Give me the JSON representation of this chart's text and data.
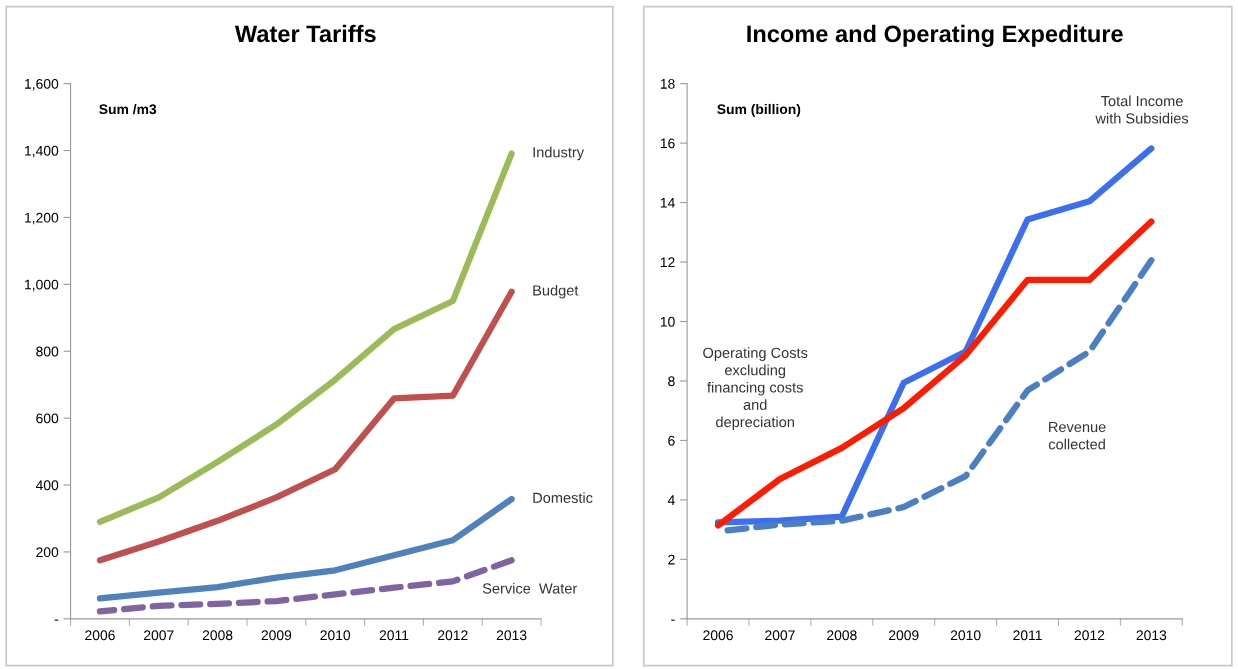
{
  "chart_data": [
    {
      "type": "line",
      "title": "Water Tariffs",
      "ylabel": "Sum /m3",
      "categories": [
        "2006",
        "2007",
        "2008",
        "2009",
        "2010",
        "2011",
        "2012",
        "2013"
      ],
      "ylim": [
        0,
        1600
      ],
      "yticks": [
        {
          "value": 0,
          "label": "-"
        },
        {
          "value": 200,
          "label": "200"
        },
        {
          "value": 400,
          "label": "400"
        },
        {
          "value": 600,
          "label": "600"
        },
        {
          "value": 800,
          "label": "800"
        },
        {
          "value": 1000,
          "label": "1,000"
        },
        {
          "value": 1200,
          "label": "1,200"
        },
        {
          "value": 1400,
          "label": "1,400"
        },
        {
          "value": 1600,
          "label": "1,600"
        }
      ],
      "grid": false,
      "legend": false,
      "marker": "none",
      "series": [
        {
          "name": "Industry",
          "color": "#9bbb59",
          "line_style": "solid",
          "values": [
            290,
            363,
            469,
            581,
            715,
            866,
            950,
            1391
          ]
        },
        {
          "name": "Budget",
          "color": "#c0504d",
          "line_style": "solid",
          "values": [
            175,
            231,
            293,
            363,
            447,
            659,
            667,
            978
          ]
        },
        {
          "name": "Domestic",
          "color": "#4f81bd",
          "line_style": "solid",
          "values": [
            61,
            78,
            95,
            123,
            145,
            190,
            235,
            358
          ]
        },
        {
          "name": "Service  Water",
          "color": "#8064a2",
          "line_style": "dashed",
          "values": [
            22,
            39,
            45,
            53,
            73,
            93,
            112,
            175
          ]
        }
      ]
    },
    {
      "type": "line",
      "title": "Income and Operating Expediture",
      "ylabel": "Sum (billion)",
      "categories": [
        "2006",
        "2007",
        "2008",
        "2009",
        "2010",
        "2011",
        "2012",
        "2013"
      ],
      "ylim": [
        0,
        18
      ],
      "yticks": [
        {
          "value": 0,
          "label": "-"
        },
        2,
        4,
        6,
        8,
        10,
        12,
        14,
        16,
        18
      ],
      "grid": false,
      "legend": false,
      "marker": "none",
      "series": [
        {
          "name": "Total Income\nwith Subsidies",
          "color": "#3b6ff0",
          "line_style": "solid",
          "values": [
            3.24,
            3.3,
            3.44,
            7.94,
            8.99,
            13.43,
            14.04,
            15.82
          ]
        },
        {
          "name": "Operating Costs\nexcluding\nfinancing costs\nand\ndepreciation",
          "color": "#ff1a00",
          "line_style": "solid",
          "values": [
            3.14,
            4.7,
            5.75,
            7.09,
            8.86,
            11.4,
            11.4,
            13.36
          ]
        },
        {
          "name": "Revenue\ncollected",
          "color": "#4a7fc4",
          "line_style": "dashed",
          "values": [
            2.94,
            3.17,
            3.3,
            3.76,
            4.8,
            7.68,
            8.99,
            12.06
          ]
        }
      ]
    }
  ]
}
